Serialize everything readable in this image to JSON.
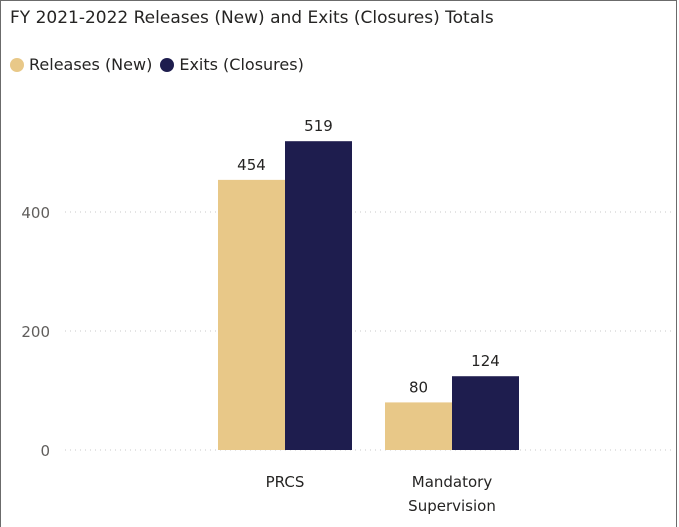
{
  "chart_data": {
    "type": "bar",
    "title": "FY 2021-2022 Releases (New) and Exits (Closures) Totals",
    "categories": [
      [
        "PRCS"
      ],
      [
        "Mandatory",
        "Supervision"
      ]
    ],
    "series": [
      {
        "name": "Releases (New)",
        "values": [
          454,
          80
        ],
        "color": "#E8C888"
      },
      {
        "name": "Exits (Closures)",
        "values": [
          519,
          124
        ],
        "color": "#1E1D4E"
      }
    ],
    "yticks": [
      0,
      200,
      400
    ],
    "ylim": [
      0,
      560
    ],
    "grid": true,
    "legend_position": "top-left"
  }
}
